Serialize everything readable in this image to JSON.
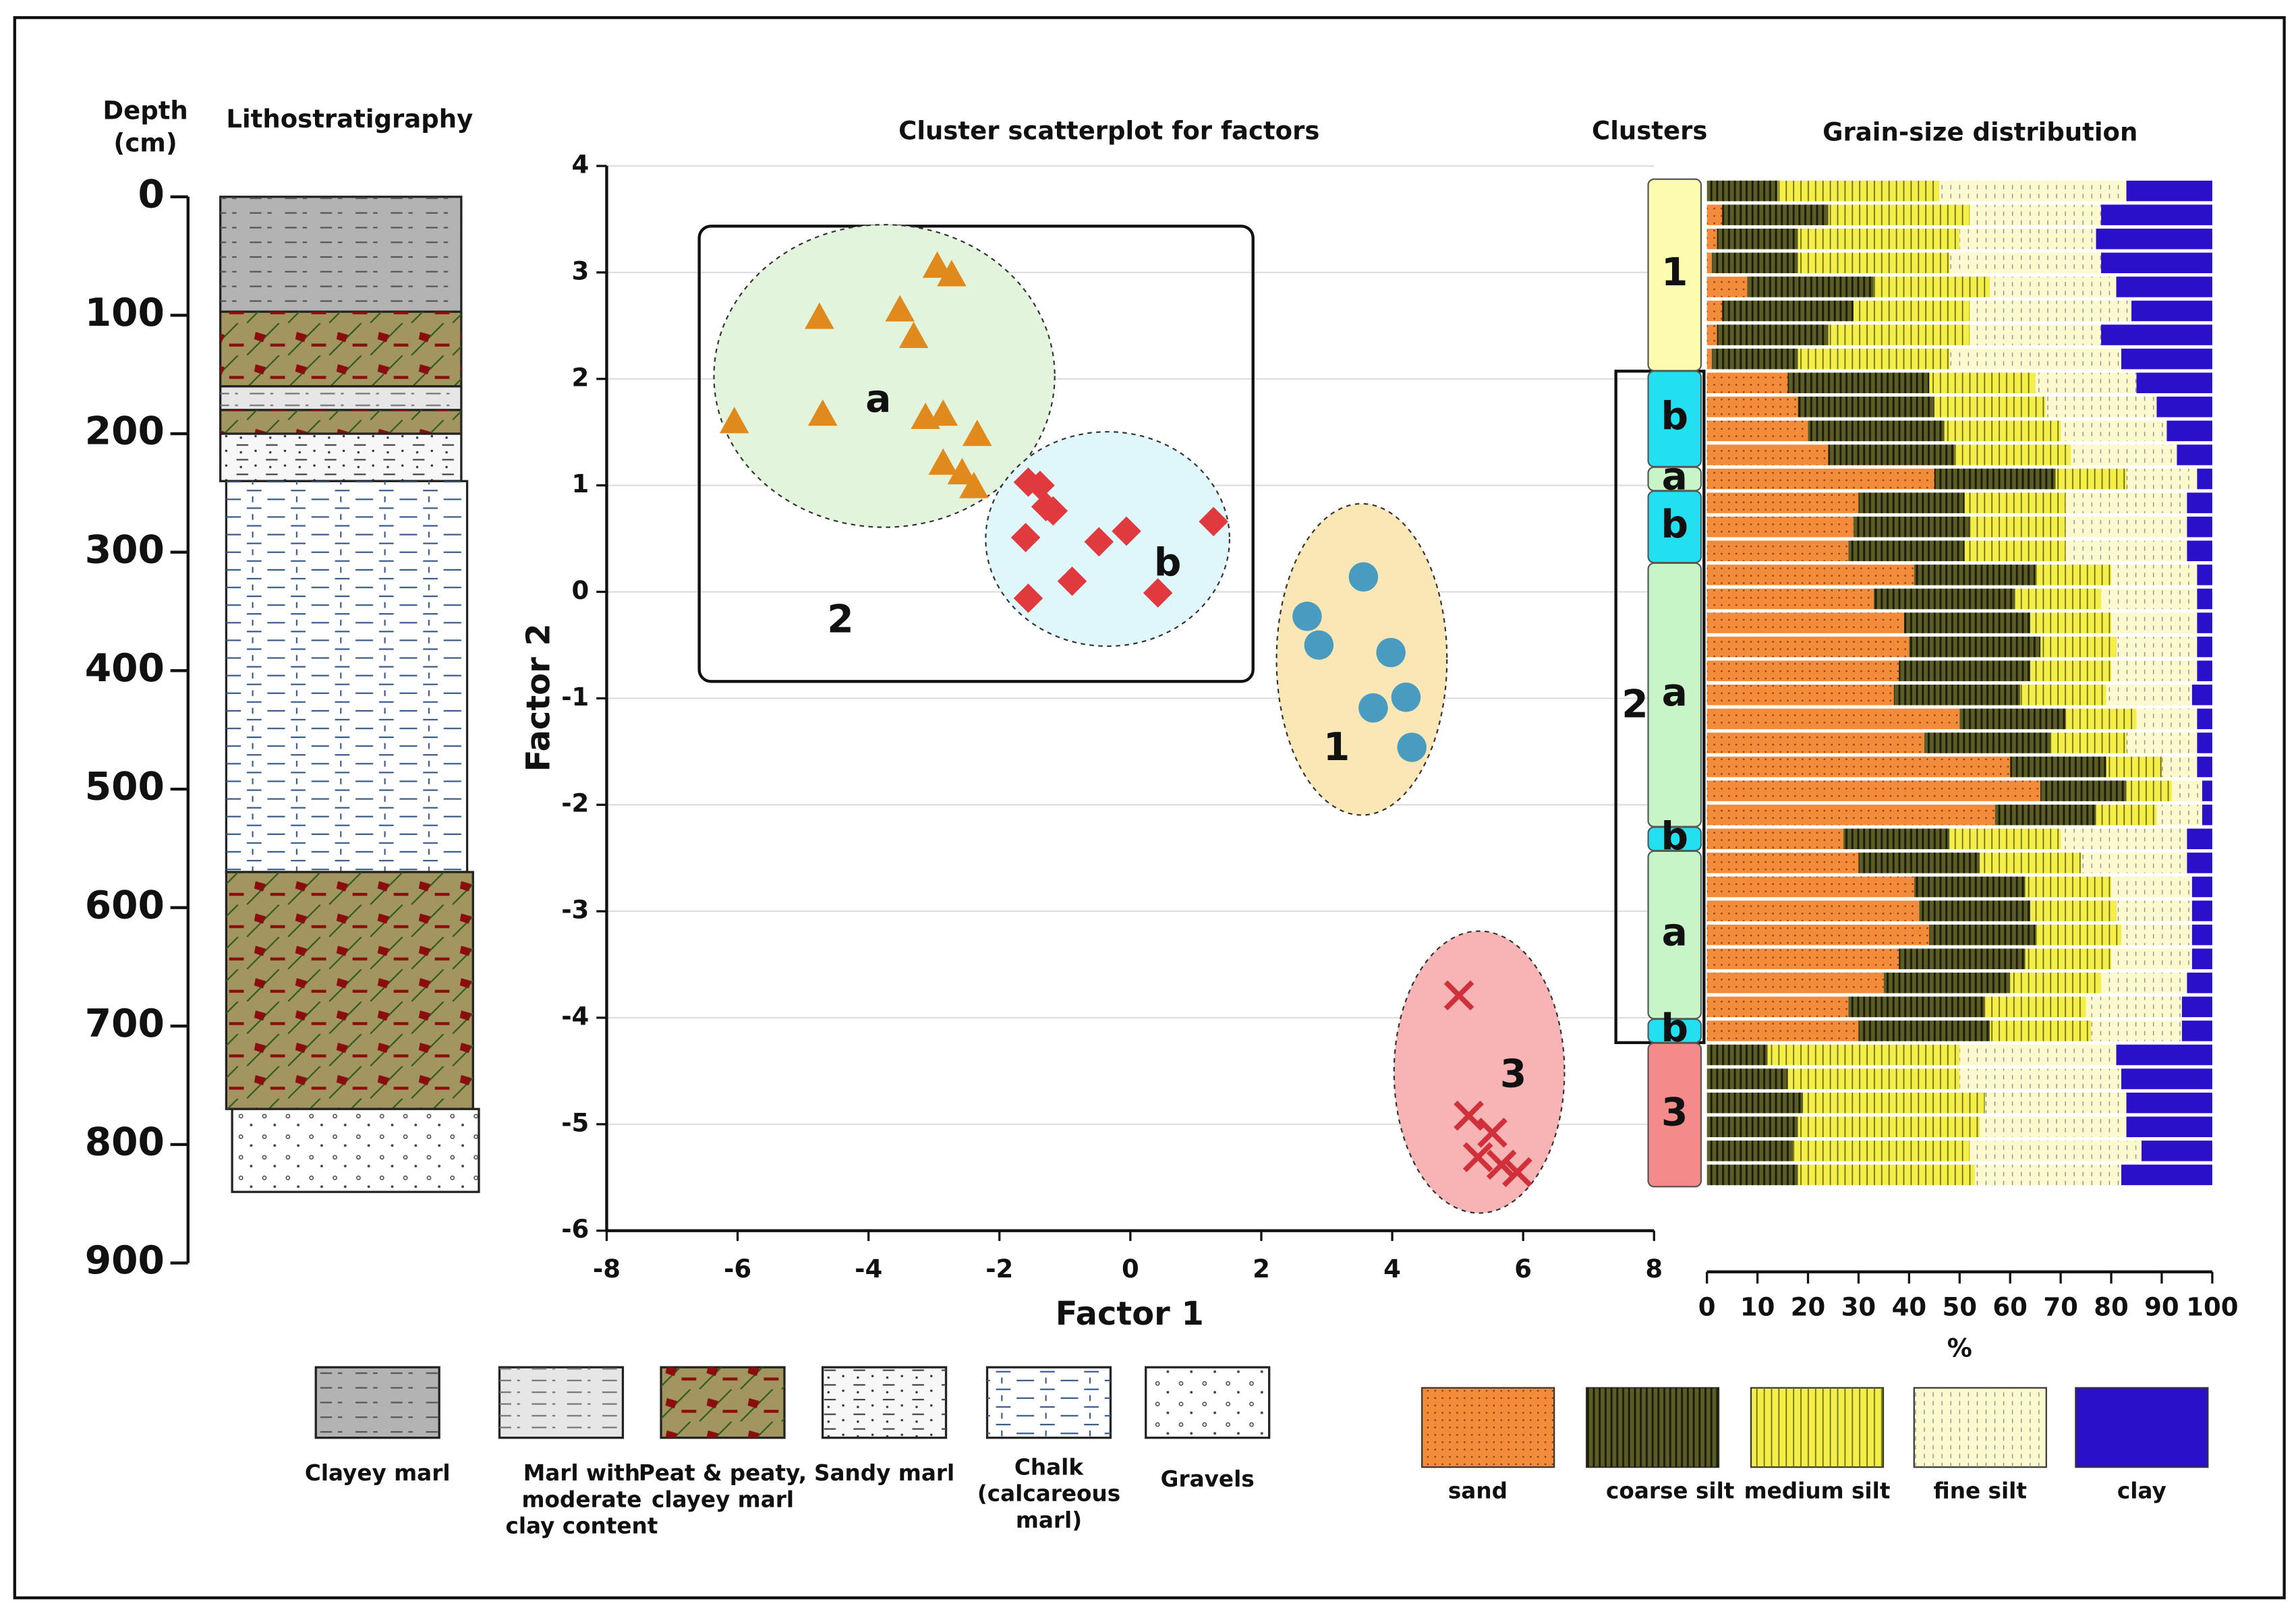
{
  "chart_data": [
    {
      "type": "lithology",
      "title": "Lithostratigraphy",
      "ylabel": [
        "Depth",
        "(cm)"
      ],
      "ylim": [
        0,
        900
      ],
      "yticks": [
        0,
        100,
        200,
        300,
        400,
        500,
        600,
        700,
        800,
        900
      ],
      "layers": [
        {
          "top": 0,
          "bottom": 97,
          "lithology": 0
        },
        {
          "top": 97,
          "bottom": 160,
          "lithology": 2
        },
        {
          "top": 160,
          "bottom": 180,
          "lithology": 1
        },
        {
          "top": 180,
          "bottom": 200,
          "lithology": 2
        },
        {
          "top": 200,
          "bottom": 240,
          "lithology": 3
        },
        {
          "top": 240,
          "bottom": 570,
          "lithology": 4
        },
        {
          "top": 570,
          "bottom": 770,
          "lithology": 2
        },
        {
          "top": 770,
          "bottom": 840,
          "lithology": 5
        }
      ],
      "lithologies": [
        {
          "name": [
            "Clayey marl"
          ],
          "color": "#b3b3b3"
        },
        {
          "name": [
            "Marl with",
            "moderate",
            "clay content"
          ],
          "color": "#e6e6e6"
        },
        {
          "name": [
            "Peat & peaty,",
            "clayey marl"
          ],
          "color": "#a39560"
        },
        {
          "name": [
            "Sandy marl"
          ],
          "color": "#f7f7f7"
        },
        {
          "name": [
            "Chalk",
            "(calcareous",
            "marl)"
          ],
          "color": "#ffffff"
        },
        {
          "name": [
            "Gravels"
          ],
          "color": "#ffffff"
        }
      ]
    },
    {
      "type": "scatter",
      "title": "Cluster scatterplot for factors",
      "xlabel": "Factor 1",
      "ylabel": "Factor 2",
      "xlim": [
        -8,
        8
      ],
      "xticks": [
        -8,
        -6,
        -4,
        -2,
        0,
        2,
        4,
        6,
        8
      ],
      "ylim": [
        -6,
        4
      ],
      "yticks": [
        -6,
        -5,
        -4,
        -3,
        -2,
        -1,
        0,
        1,
        2,
        3,
        4
      ],
      "grid": true,
      "series": [
        {
          "marker": "triangle",
          "color": "#e08a1e",
          "x": [
            -6.05,
            -4.75,
            -4.7,
            -3.52,
            -3.31,
            -2.95,
            -2.73,
            -3.13,
            -2.86,
            -2.34,
            -2.86,
            -2.57,
            -2.39
          ],
          "y": [
            1.6,
            2.58,
            1.67,
            2.65,
            2.4,
            3.06,
            2.98,
            1.64,
            1.67,
            1.48,
            1.21,
            1.12,
            0.99
          ]
        },
        {
          "marker": "diamond",
          "color": "#e0393e",
          "x": [
            -1.56,
            -1.38,
            -1.29,
            -1.18,
            -1.6,
            -0.89,
            -0.48,
            -0.06,
            -1.56,
            0.42,
            1.27
          ],
          "y": [
            1.03,
            1.0,
            0.8,
            0.76,
            0.51,
            0.1,
            0.47,
            0.57,
            -0.06,
            -0.01,
            0.66
          ]
        },
        {
          "marker": "circle",
          "color": "#4a9bc0",
          "x": [
            3.56,
            2.7,
            2.88,
            3.98,
            3.71,
            4.21,
            4.3
          ],
          "y": [
            0.14,
            -0.23,
            -0.5,
            -0.57,
            -1.09,
            -0.99,
            -1.46
          ]
        },
        {
          "marker": "x",
          "color": "#d0303a",
          "x": [
            5.02,
            5.17,
            5.53,
            5.31,
            5.67,
            5.91
          ],
          "y": [
            -3.79,
            -4.92,
            -5.08,
            -5.31,
            -5.38,
            -5.45
          ]
        }
      ],
      "annotations": [
        {
          "text": "a",
          "x": -3.85,
          "y": 1.79
        },
        {
          "text": "b",
          "x": 0.57,
          "y": 0.25
        },
        {
          "text": "2",
          "x": -4.43,
          "y": -0.28
        },
        {
          "text": "1",
          "x": 3.15,
          "y": -1.48
        },
        {
          "text": "3",
          "x": 5.85,
          "y": -4.55
        }
      ]
    },
    {
      "type": "stacked_bar",
      "title": "Grain-size distribution",
      "clusters_title": "Clusters",
      "xlabel": "%",
      "xlim": [
        0,
        100
      ],
      "xticks": [
        0,
        10,
        20,
        30,
        40,
        50,
        60,
        70,
        80,
        90,
        100
      ],
      "series": [
        {
          "name": "sand",
          "color": "#f28c3a",
          "values": [
            0,
            3,
            2,
            1,
            8,
            3,
            2,
            1,
            16,
            18,
            20,
            24,
            45,
            30,
            29,
            28,
            41,
            33,
            39,
            40,
            38,
            37,
            50,
            43,
            60,
            66,
            57,
            27,
            30,
            41,
            42,
            44,
            38,
            35,
            28,
            30,
            0,
            0,
            0,
            0,
            0,
            0
          ]
        },
        {
          "name": "coarse silt",
          "color": "#5c5c28",
          "values": [
            14,
            21,
            16,
            17,
            25,
            26,
            22,
            17,
            28,
            27,
            27,
            25,
            24,
            21,
            23,
            23,
            24,
            28,
            25,
            26,
            26,
            25,
            21,
            25,
            19,
            17,
            20,
            21,
            24,
            22,
            22,
            21,
            25,
            25,
            27,
            26,
            12,
            16,
            19,
            18,
            17,
            18
          ]
        },
        {
          "name": "medium silt",
          "color": "#f3ee4a",
          "values": [
            32,
            28,
            32,
            30,
            23,
            23,
            28,
            30,
            21,
            22,
            23,
            23,
            14,
            20,
            19,
            20,
            15,
            17,
            16,
            15,
            16,
            17,
            14,
            15,
            11,
            9,
            12,
            22,
            20,
            17,
            17,
            17,
            17,
            18,
            20,
            20,
            38,
            34,
            36,
            36,
            35,
            35
          ]
        },
        {
          "name": "fine silt",
          "color": "#fcf9cf",
          "values": [
            37,
            26,
            27,
            30,
            25,
            32,
            26,
            34,
            20,
            22,
            21,
            21,
            14,
            24,
            24,
            24,
            17,
            19,
            17,
            16,
            17,
            17,
            12,
            14,
            7,
            6,
            9,
            25,
            21,
            16,
            15,
            14,
            16,
            17,
            19,
            18,
            31,
            32,
            28,
            29,
            34,
            29
          ]
        },
        {
          "name": "clay",
          "color": "#2a10c8",
          "values": [
            17,
            22,
            23,
            22,
            19,
            16,
            22,
            18,
            15,
            11,
            9,
            7,
            3,
            5,
            5,
            5,
            3,
            3,
            3,
            3,
            3,
            4,
            3,
            3,
            3,
            2,
            2,
            5,
            5,
            4,
            4,
            4,
            4,
            5,
            6,
            6,
            19,
            18,
            17,
            17,
            14,
            18
          ]
        }
      ],
      "clusters": [
        {
          "label": "1",
          "rows": [
            0,
            7
          ],
          "color": "#fdfbb0"
        },
        {
          "label": "b",
          "rows": [
            8,
            11
          ],
          "color": "#22e0f0"
        },
        {
          "label": "a",
          "rows": [
            12,
            12
          ],
          "color": "#c8f5c8"
        },
        {
          "label": "b",
          "rows": [
            13,
            15
          ],
          "color": "#22e0f0"
        },
        {
          "label": "a",
          "rows": [
            16,
            26
          ],
          "color": "#c8f5c8"
        },
        {
          "label": "b",
          "rows": [
            27,
            27
          ],
          "color": "#22e0f0"
        },
        {
          "label": "a",
          "rows": [
            28,
            34
          ],
          "color": "#c8f5c8"
        },
        {
          "label": "b",
          "rows": [
            35,
            35
          ],
          "color": "#22e0f0"
        },
        {
          "label": "3",
          "rows": [
            36,
            41
          ],
          "color": "#f58a8a"
        }
      ],
      "cluster_groups": [
        {
          "label": "2",
          "rows": [
            8,
            35
          ]
        }
      ]
    }
  ]
}
